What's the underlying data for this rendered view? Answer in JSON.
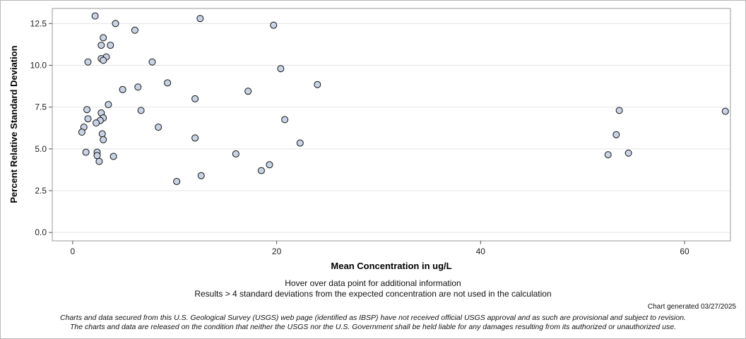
{
  "chart_data": {
    "type": "scatter",
    "xlabel": "Mean Concentration in ug/L",
    "ylabel": "Percent Relative Standard Deviation",
    "xlim": [
      -2,
      64.5
    ],
    "ylim": [
      -0.5,
      13.4
    ],
    "x_ticks": [
      0,
      20,
      40,
      60
    ],
    "x_tick_labels": [
      "0",
      "20",
      "40",
      "60"
    ],
    "y_ticks": [
      0,
      2.5,
      5,
      7.5,
      10,
      12.5
    ],
    "y_tick_labels": [
      "0.0",
      "2.5",
      "5.0",
      "7.5",
      "10.0",
      "12.5"
    ],
    "grid": "horizontal",
    "marker_fill": "#c8d4e6",
    "marker_stroke": "#111111",
    "points": [
      {
        "x": 2.2,
        "y": 12.95
      },
      {
        "x": 4.2,
        "y": 12.5
      },
      {
        "x": 12.5,
        "y": 12.8
      },
      {
        "x": 19.7,
        "y": 12.4
      },
      {
        "x": 6.1,
        "y": 12.1
      },
      {
        "x": 3.0,
        "y": 11.65
      },
      {
        "x": 2.8,
        "y": 11.2
      },
      {
        "x": 3.7,
        "y": 11.2
      },
      {
        "x": 3.3,
        "y": 10.5
      },
      {
        "x": 2.8,
        "y": 10.4
      },
      {
        "x": 3.0,
        "y": 10.3
      },
      {
        "x": 1.5,
        "y": 10.2
      },
      {
        "x": 7.8,
        "y": 10.2
      },
      {
        "x": 20.4,
        "y": 9.8
      },
      {
        "x": 9.3,
        "y": 8.95
      },
      {
        "x": 24.0,
        "y": 8.85
      },
      {
        "x": 6.4,
        "y": 8.7
      },
      {
        "x": 4.9,
        "y": 8.55
      },
      {
        "x": 17.2,
        "y": 8.45
      },
      {
        "x": 12.0,
        "y": 8.0
      },
      {
        "x": 3.5,
        "y": 7.65
      },
      {
        "x": 1.4,
        "y": 7.35
      },
      {
        "x": 6.7,
        "y": 7.3
      },
      {
        "x": 53.6,
        "y": 7.3
      },
      {
        "x": 64.0,
        "y": 7.25
      },
      {
        "x": 2.8,
        "y": 7.15
      },
      {
        "x": 3.0,
        "y": 6.85
      },
      {
        "x": 1.5,
        "y": 6.8
      },
      {
        "x": 20.8,
        "y": 6.75
      },
      {
        "x": 2.7,
        "y": 6.7
      },
      {
        "x": 2.3,
        "y": 6.55
      },
      {
        "x": 8.4,
        "y": 6.3
      },
      {
        "x": 1.1,
        "y": 6.3
      },
      {
        "x": 0.9,
        "y": 6.0
      },
      {
        "x": 2.9,
        "y": 5.9
      },
      {
        "x": 53.3,
        "y": 5.85
      },
      {
        "x": 12.0,
        "y": 5.65
      },
      {
        "x": 3.0,
        "y": 5.55
      },
      {
        "x": 22.3,
        "y": 5.35
      },
      {
        "x": 1.3,
        "y": 4.8
      },
      {
        "x": 2.4,
        "y": 4.8
      },
      {
        "x": 54.5,
        "y": 4.75
      },
      {
        "x": 16.0,
        "y": 4.7
      },
      {
        "x": 52.5,
        "y": 4.65
      },
      {
        "x": 2.4,
        "y": 4.6
      },
      {
        "x": 4.0,
        "y": 4.55
      },
      {
        "x": 2.6,
        "y": 4.25
      },
      {
        "x": 19.3,
        "y": 4.05
      },
      {
        "x": 18.5,
        "y": 3.7
      },
      {
        "x": 12.6,
        "y": 3.4
      },
      {
        "x": 10.2,
        "y": 3.05
      }
    ]
  },
  "notes": {
    "hover": "Hover over data point for additional information",
    "exclusion": "Results > 4 standard deviations from the expected concentration are not used in the calculation",
    "generated": "Chart generated 03/27/2025",
    "disclaimer_line1": "Charts and data secured from this U.S. Geological Survey (USGS) web page (identified as IBSP) have not received official USGS approval and as such are provisional and subject to revision.",
    "disclaimer_line2": "The charts and data are released on the condition that neither the USGS nor the U.S. Government shall be held liable for any damages resulting from its authorized or unauthorized use."
  }
}
